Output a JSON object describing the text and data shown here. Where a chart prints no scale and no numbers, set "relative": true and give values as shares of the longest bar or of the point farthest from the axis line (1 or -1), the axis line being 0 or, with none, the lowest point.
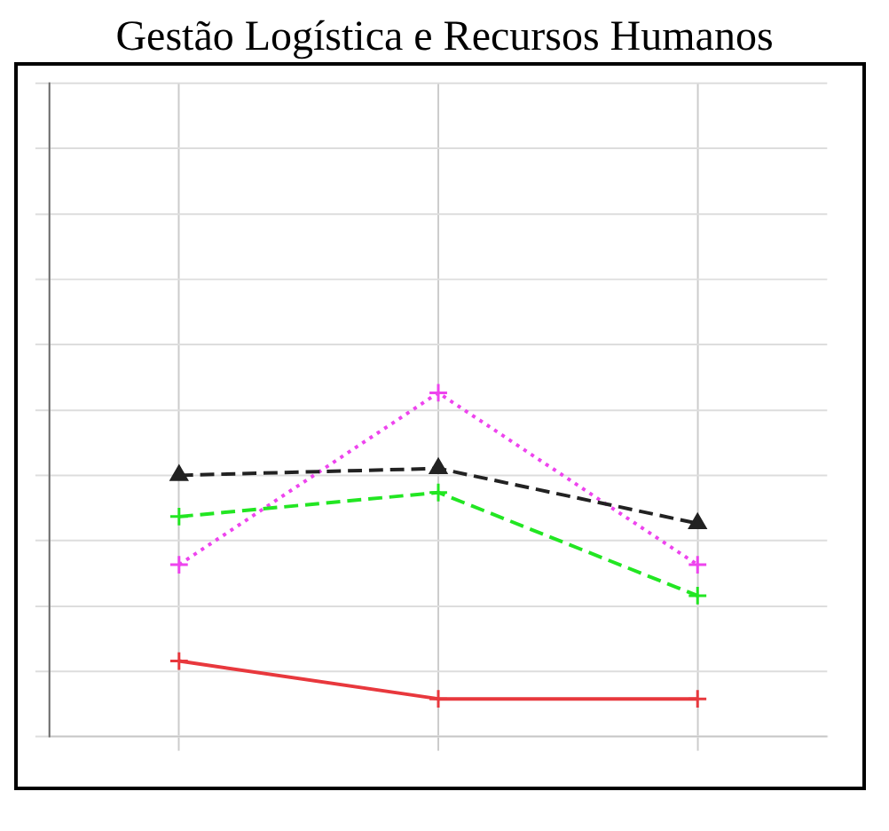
{
  "chart_data": {
    "type": "line",
    "title": "Gestão Logística e Recursos Humanos",
    "relative": true,
    "categories": [
      null,
      null,
      null
    ],
    "grid": true,
    "series": [
      {
        "color": "#e8383d",
        "values": [
          0.22,
          0.11,
          0.11
        ],
        "line_style": "solid",
        "marker": "cross"
      },
      {
        "color": "#22e622",
        "values": [
          0.64,
          0.71,
          0.41
        ],
        "line_style": "dashed",
        "marker": "cross"
      },
      {
        "color": "#222222",
        "values": [
          0.76,
          0.78,
          0.62
        ],
        "line_style": "dashed",
        "marker": "triangle"
      },
      {
        "color": "#ee44ee",
        "values": [
          0.5,
          1.0,
          0.5
        ],
        "line_style": "dotted",
        "marker": "cross"
      }
    ]
  }
}
